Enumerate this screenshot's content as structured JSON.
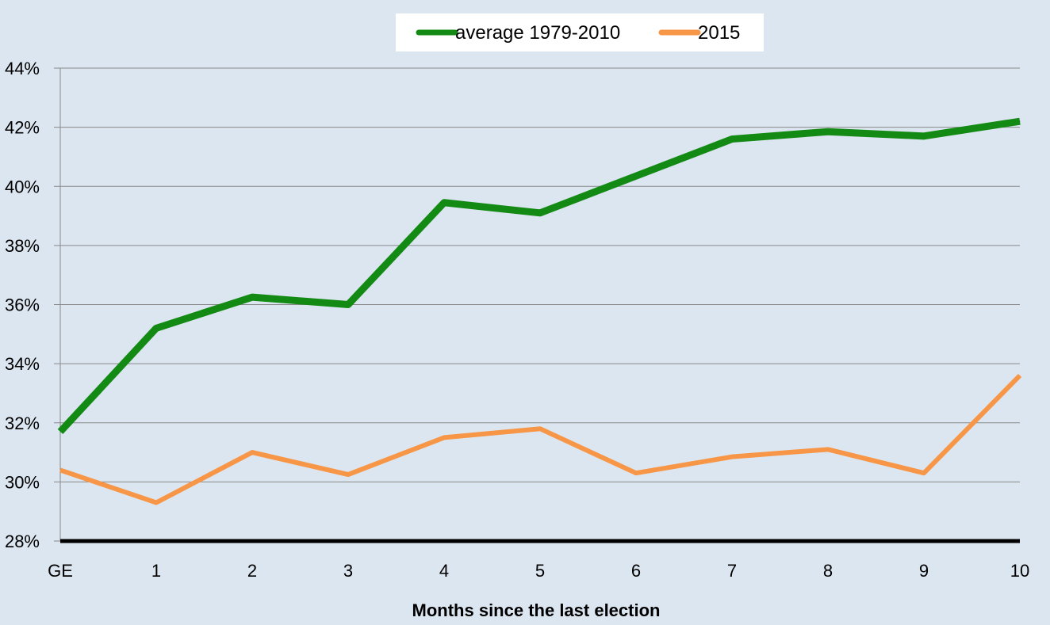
{
  "chart_data": {
    "type": "line",
    "categories": [
      "GE",
      "1",
      "2",
      "3",
      "4",
      "5",
      "6",
      "7",
      "8",
      "9",
      "10"
    ],
    "series": [
      {
        "name": "average 1979-2010",
        "color": "#138a13",
        "values": [
          31.7,
          35.2,
          36.25,
          36.0,
          39.45,
          39.1,
          40.35,
          41.6,
          41.85,
          41.7,
          42.2
        ]
      },
      {
        "name": "2015",
        "color": "#f79646",
        "values": [
          30.4,
          29.3,
          31.0,
          30.25,
          31.5,
          31.8,
          30.3,
          30.85,
          31.1,
          30.3,
          33.6
        ]
      }
    ],
    "ylim": [
      28,
      44
    ],
    "yticks": [
      "28%",
      "30%",
      "32%",
      "34%",
      "36%",
      "38%",
      "40%",
      "42%",
      "44%"
    ],
    "ytick_values": [
      28,
      30,
      32,
      34,
      36,
      38,
      40,
      42,
      44
    ],
    "xlabel": "Months since the last election",
    "ylabel": "",
    "title": "",
    "grid": true,
    "legend_position": "top-center"
  }
}
